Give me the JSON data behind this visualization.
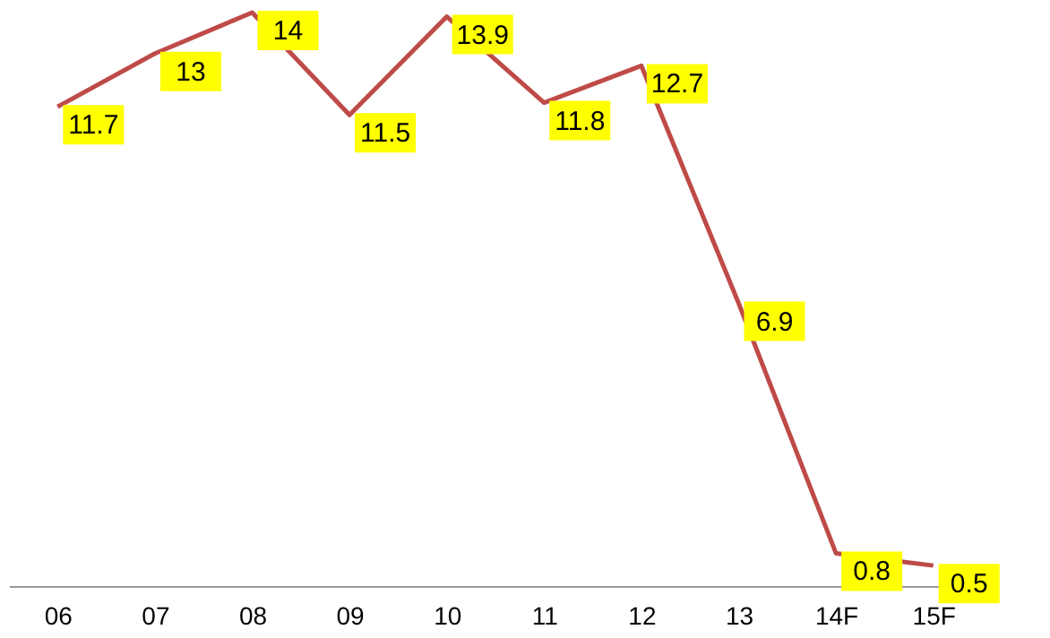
{
  "chart_data": {
    "type": "line",
    "categories": [
      "06",
      "07",
      "08",
      "09",
      "10",
      "11",
      "12",
      "13",
      "14F",
      "15F"
    ],
    "series": [
      {
        "color": "#be4b48",
        "values": [
          11.7,
          13,
          14,
          11.5,
          13.9,
          11.8,
          12.7,
          6.9,
          0.8,
          0.5
        ]
      }
    ],
    "data_labels": true,
    "marker": "none",
    "line_style": "solid"
  }
}
